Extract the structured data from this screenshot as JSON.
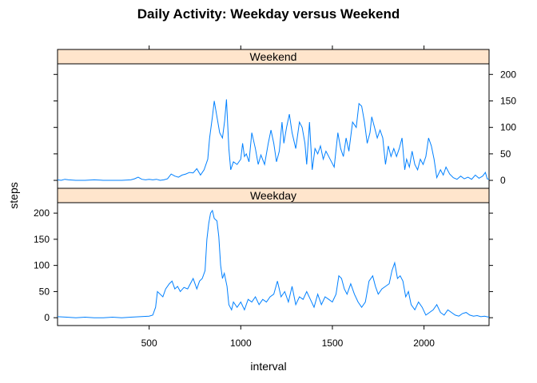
{
  "chart_data": {
    "type": "line",
    "title": "Daily Activity: Weekday versus Weekend",
    "xlabel": "interval",
    "ylabel": "steps",
    "xlim": [
      0,
      2355
    ],
    "ylim": [
      -15,
      220
    ],
    "x_ticks": [
      500,
      1000,
      1500,
      2000
    ],
    "y_ticks": [
      0,
      50,
      100,
      150,
      200
    ],
    "line_color": "#0080ff",
    "strip_color": "#ffe5cc",
    "grid": false,
    "panels": [
      {
        "name": "Weekend",
        "values": [
          [
            0,
            1
          ],
          [
            20,
            0
          ],
          [
            40,
            2
          ],
          [
            60,
            1
          ],
          [
            100,
            0
          ],
          [
            150,
            0
          ],
          [
            200,
            1
          ],
          [
            250,
            0
          ],
          [
            300,
            0
          ],
          [
            350,
            0
          ],
          [
            400,
            1
          ],
          [
            420,
            3
          ],
          [
            440,
            6
          ],
          [
            460,
            2
          ],
          [
            480,
            1
          ],
          [
            500,
            2
          ],
          [
            520,
            1
          ],
          [
            540,
            2
          ],
          [
            560,
            0
          ],
          [
            580,
            1
          ],
          [
            600,
            3
          ],
          [
            620,
            12
          ],
          [
            640,
            8
          ],
          [
            660,
            6
          ],
          [
            680,
            10
          ],
          [
            700,
            12
          ],
          [
            720,
            15
          ],
          [
            740,
            14
          ],
          [
            760,
            22
          ],
          [
            780,
            10
          ],
          [
            800,
            20
          ],
          [
            820,
            40
          ],
          [
            830,
            80
          ],
          [
            845,
            120
          ],
          [
            855,
            150
          ],
          [
            870,
            120
          ],
          [
            885,
            90
          ],
          [
            900,
            80
          ],
          [
            912,
            112
          ],
          [
            922,
            153
          ],
          [
            935,
            60
          ],
          [
            945,
            20
          ],
          [
            960,
            35
          ],
          [
            980,
            30
          ],
          [
            1000,
            40
          ],
          [
            1010,
            70
          ],
          [
            1020,
            45
          ],
          [
            1030,
            50
          ],
          [
            1045,
            35
          ],
          [
            1060,
            90
          ],
          [
            1080,
            60
          ],
          [
            1095,
            30
          ],
          [
            1110,
            48
          ],
          [
            1130,
            30
          ],
          [
            1150,
            70
          ],
          [
            1165,
            95
          ],
          [
            1180,
            70
          ],
          [
            1195,
            35
          ],
          [
            1210,
            55
          ],
          [
            1225,
            110
          ],
          [
            1235,
            70
          ],
          [
            1250,
            100
          ],
          [
            1265,
            125
          ],
          [
            1280,
            90
          ],
          [
            1300,
            60
          ],
          [
            1320,
            110
          ],
          [
            1335,
            100
          ],
          [
            1350,
            70
          ],
          [
            1360,
            30
          ],
          [
            1375,
            110
          ],
          [
            1390,
            20
          ],
          [
            1405,
            60
          ],
          [
            1420,
            50
          ],
          [
            1435,
            65
          ],
          [
            1450,
            40
          ],
          [
            1465,
            55
          ],
          [
            1480,
            45
          ],
          [
            1495,
            35
          ],
          [
            1510,
            25
          ],
          [
            1530,
            90
          ],
          [
            1545,
            60
          ],
          [
            1560,
            45
          ],
          [
            1575,
            80
          ],
          [
            1590,
            55
          ],
          [
            1610,
            110
          ],
          [
            1630,
            100
          ],
          [
            1645,
            145
          ],
          [
            1660,
            140
          ],
          [
            1675,
            110
          ],
          [
            1690,
            70
          ],
          [
            1705,
            90
          ],
          [
            1715,
            120
          ],
          [
            1730,
            100
          ],
          [
            1745,
            80
          ],
          [
            1760,
            95
          ],
          [
            1775,
            80
          ],
          [
            1790,
            30
          ],
          [
            1805,
            65
          ],
          [
            1820,
            45
          ],
          [
            1835,
            60
          ],
          [
            1850,
            45
          ],
          [
            1865,
            60
          ],
          [
            1880,
            80
          ],
          [
            1895,
            20
          ],
          [
            1905,
            40
          ],
          [
            1920,
            25
          ],
          [
            1935,
            55
          ],
          [
            1950,
            30
          ],
          [
            1965,
            20
          ],
          [
            1980,
            40
          ],
          [
            1995,
            30
          ],
          [
            2010,
            45
          ],
          [
            2025,
            80
          ],
          [
            2040,
            65
          ],
          [
            2055,
            40
          ],
          [
            2070,
            5
          ],
          [
            2090,
            20
          ],
          [
            2105,
            10
          ],
          [
            2120,
            25
          ],
          [
            2140,
            12
          ],
          [
            2160,
            5
          ],
          [
            2180,
            2
          ],
          [
            2200,
            8
          ],
          [
            2220,
            3
          ],
          [
            2240,
            6
          ],
          [
            2260,
            2
          ],
          [
            2280,
            10
          ],
          [
            2300,
            4
          ],
          [
            2320,
            8
          ],
          [
            2335,
            15
          ],
          [
            2345,
            3
          ],
          [
            2355,
            2
          ]
        ]
      },
      {
        "name": "Weekday",
        "values": [
          [
            0,
            2
          ],
          [
            50,
            1
          ],
          [
            100,
            0
          ],
          [
            150,
            1
          ],
          [
            200,
            0
          ],
          [
            250,
            0
          ],
          [
            300,
            1
          ],
          [
            350,
            0
          ],
          [
            400,
            1
          ],
          [
            450,
            2
          ],
          [
            500,
            3
          ],
          [
            520,
            5
          ],
          [
            535,
            20
          ],
          [
            545,
            50
          ],
          [
            560,
            45
          ],
          [
            575,
            40
          ],
          [
            590,
            55
          ],
          [
            610,
            65
          ],
          [
            625,
            70
          ],
          [
            640,
            55
          ],
          [
            655,
            60
          ],
          [
            670,
            50
          ],
          [
            690,
            58
          ],
          [
            710,
            55
          ],
          [
            725,
            65
          ],
          [
            740,
            75
          ],
          [
            760,
            55
          ],
          [
            775,
            70
          ],
          [
            790,
            75
          ],
          [
            805,
            90
          ],
          [
            815,
            150
          ],
          [
            825,
            180
          ],
          [
            835,
            200
          ],
          [
            845,
            205
          ],
          [
            855,
            190
          ],
          [
            870,
            185
          ],
          [
            880,
            155
          ],
          [
            890,
            100
          ],
          [
            900,
            75
          ],
          [
            910,
            85
          ],
          [
            925,
            60
          ],
          [
            935,
            25
          ],
          [
            950,
            15
          ],
          [
            960,
            30
          ],
          [
            980,
            20
          ],
          [
            1000,
            30
          ],
          [
            1020,
            15
          ],
          [
            1040,
            35
          ],
          [
            1060,
            30
          ],
          [
            1080,
            40
          ],
          [
            1100,
            25
          ],
          [
            1120,
            35
          ],
          [
            1140,
            30
          ],
          [
            1160,
            40
          ],
          [
            1180,
            45
          ],
          [
            1200,
            70
          ],
          [
            1220,
            40
          ],
          [
            1240,
            50
          ],
          [
            1260,
            30
          ],
          [
            1280,
            60
          ],
          [
            1300,
            25
          ],
          [
            1320,
            40
          ],
          [
            1340,
            35
          ],
          [
            1360,
            50
          ],
          [
            1380,
            35
          ],
          [
            1400,
            20
          ],
          [
            1420,
            45
          ],
          [
            1440,
            25
          ],
          [
            1460,
            40
          ],
          [
            1480,
            35
          ],
          [
            1500,
            30
          ],
          [
            1520,
            45
          ],
          [
            1535,
            80
          ],
          [
            1550,
            75
          ],
          [
            1565,
            55
          ],
          [
            1580,
            45
          ],
          [
            1600,
            65
          ],
          [
            1620,
            45
          ],
          [
            1640,
            30
          ],
          [
            1660,
            20
          ],
          [
            1680,
            30
          ],
          [
            1700,
            70
          ],
          [
            1720,
            80
          ],
          [
            1735,
            60
          ],
          [
            1750,
            45
          ],
          [
            1770,
            55
          ],
          [
            1790,
            60
          ],
          [
            1810,
            65
          ],
          [
            1825,
            90
          ],
          [
            1840,
            105
          ],
          [
            1855,
            75
          ],
          [
            1870,
            80
          ],
          [
            1885,
            70
          ],
          [
            1900,
            40
          ],
          [
            1915,
            50
          ],
          [
            1930,
            25
          ],
          [
            1950,
            15
          ],
          [
            1970,
            30
          ],
          [
            1990,
            20
          ],
          [
            2010,
            5
          ],
          [
            2030,
            10
          ],
          [
            2050,
            15
          ],
          [
            2070,
            25
          ],
          [
            2090,
            10
          ],
          [
            2110,
            5
          ],
          [
            2130,
            15
          ],
          [
            2150,
            10
          ],
          [
            2170,
            5
          ],
          [
            2190,
            3
          ],
          [
            2210,
            8
          ],
          [
            2230,
            10
          ],
          [
            2250,
            5
          ],
          [
            2270,
            3
          ],
          [
            2290,
            4
          ],
          [
            2310,
            2
          ],
          [
            2330,
            3
          ],
          [
            2355,
            1
          ]
        ]
      }
    ]
  }
}
